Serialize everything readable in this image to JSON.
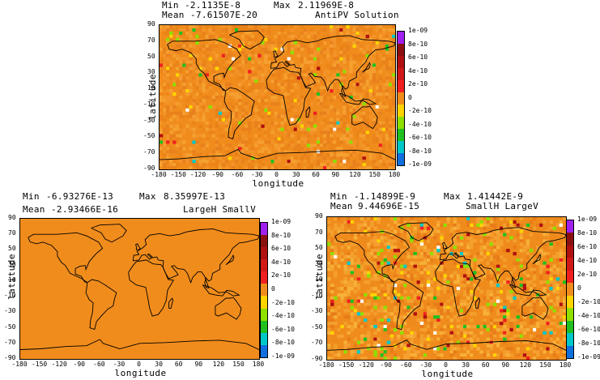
{
  "panels": [
    {
      "id": "antipv",
      "min_label": "Min",
      "min_value": "-2.1135E-8",
      "max_label": "Max",
      "max_value": "2.11969E-8",
      "mean_label": "Mean",
      "mean_value": "-7.61507E-20",
      "title": "AntiPV Solution",
      "xlabel": "longitude",
      "ylabel": "latitude"
    },
    {
      "id": "largeh-smallv",
      "min_label": "Min",
      "min_value": "-6.93276E-13",
      "max_label": "Max",
      "max_value": "8.35997E-13",
      "mean_label": "Mean",
      "mean_value": "-2.93466E-16",
      "title": "LargeH SmallV",
      "xlabel": "longitude",
      "ylabel": "latitude"
    },
    {
      "id": "smallh-largev",
      "min_label": "Min",
      "min_value": "-1.14899E-9",
      "max_label": "Max",
      "max_value": "1.41442E-9",
      "mean_label": "Mean",
      "mean_value": "9.44696E-15",
      "title": "SmallH LargeV",
      "xlabel": "longitude",
      "ylabel": "latitude"
    }
  ],
  "x_ticks": [
    "-180",
    "-150",
    "-120",
    "-90",
    "-60",
    "-30",
    "0",
    "30",
    "60",
    "90",
    "120",
    "150",
    "180"
  ],
  "y_ticks": [
    "90",
    "70",
    "50",
    "30",
    "10",
    "-10",
    "-30",
    "-50",
    "-70",
    "-90"
  ],
  "colorbar_labels": [
    "1e-09",
    "8e-10",
    "6e-10",
    "4e-10",
    "2e-10",
    "0",
    "-2e-10",
    "-4e-10",
    "-6e-10",
    "-8e-10",
    "-1e-09"
  ],
  "colorbar_colors": [
    "#a020f0",
    "#8b1010",
    "#b01010",
    "#d01818",
    "#f02020",
    "#f08c1c",
    "#ffd400",
    "#8ee000",
    "#20c020",
    "#00c8c8",
    "#1070e0"
  ],
  "background_color": "#f08c1c",
  "chart_data": [
    {
      "type": "heatmap",
      "title": "AntiPV Solution",
      "xlabel": "longitude",
      "ylabel": "latitude",
      "xlim": [
        -180,
        180
      ],
      "ylim": [
        -90,
        90
      ],
      "x_ticks": [
        -180,
        -150,
        -120,
        -90,
        -60,
        -30,
        0,
        30,
        60,
        90,
        120,
        150,
        180
      ],
      "y_ticks": [
        90,
        70,
        50,
        30,
        10,
        -10,
        -30,
        -50,
        -70,
        -90
      ],
      "color_scale": [
        1e-09,
        8e-10,
        6e-10,
        4e-10,
        2e-10,
        0,
        -2e-10,
        -4e-10,
        -6e-10,
        -8e-10,
        -1e-09
      ],
      "stats": {
        "min": -2.1135e-08,
        "max": 2.11969e-08,
        "mean": -7.61507e-20
      }
    },
    {
      "type": "heatmap",
      "title": "LargeH SmallV",
      "xlabel": "longitude",
      "ylabel": "latitude",
      "xlim": [
        -180,
        180
      ],
      "ylim": [
        -90,
        90
      ],
      "x_ticks": [
        -180,
        -150,
        -120,
        -90,
        -60,
        -30,
        0,
        30,
        60,
        90,
        120,
        150,
        180
      ],
      "y_ticks": [
        90,
        70,
        50,
        30,
        10,
        -10,
        -30,
        -50,
        -70,
        -90
      ],
      "color_scale": [
        1e-09,
        8e-10,
        6e-10,
        4e-10,
        2e-10,
        0,
        -2e-10,
        -4e-10,
        -6e-10,
        -8e-10,
        -1e-09
      ],
      "stats": {
        "min": -6.93276e-13,
        "max": 8.35997e-13,
        "mean": -2.93466e-16
      }
    },
    {
      "type": "heatmap",
      "title": "SmallH LargeV",
      "xlabel": "longitude",
      "ylabel": "latitude",
      "xlim": [
        -180,
        180
      ],
      "ylim": [
        -90,
        90
      ],
      "x_ticks": [
        -180,
        -150,
        -120,
        -90,
        -60,
        -30,
        0,
        30,
        60,
        90,
        120,
        150,
        180
      ],
      "y_ticks": [
        90,
        70,
        50,
        30,
        10,
        -10,
        -30,
        -50,
        -70,
        -90
      ],
      "color_scale": [
        1e-09,
        8e-10,
        6e-10,
        4e-10,
        2e-10,
        0,
        -2e-10,
        -4e-10,
        -6e-10,
        -8e-10,
        -1e-09
      ],
      "stats": {
        "min": -1.14899e-09,
        "max": 1.41442e-09,
        "mean": 9.44696e-15
      }
    }
  ]
}
